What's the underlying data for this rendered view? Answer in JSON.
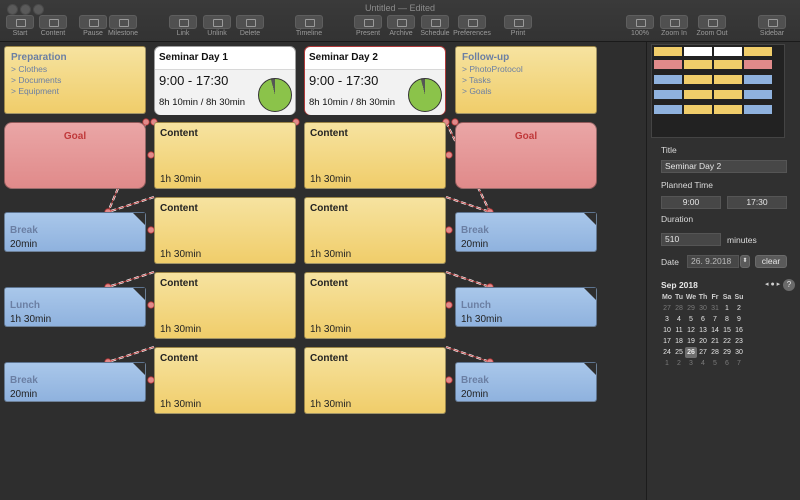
{
  "window": {
    "title": "Untitled — Edited"
  },
  "toolbar": [
    {
      "id": "start",
      "label": "Start",
      "icon": "start-icon"
    },
    {
      "id": "content",
      "label": "Content",
      "icon": "content-icon"
    },
    {
      "id": "pause",
      "label": "Pause",
      "icon": "pause-icon"
    },
    {
      "id": "milestone",
      "label": "Milestone",
      "icon": "milestone-icon"
    },
    {
      "id": "link",
      "label": "Link",
      "icon": "link-icon"
    },
    {
      "id": "unlink",
      "label": "Unlink",
      "icon": "unlink-icon"
    },
    {
      "id": "delete",
      "label": "Delete",
      "icon": "delete-icon"
    },
    {
      "id": "timeline",
      "label": "Timeline",
      "icon": "timeline-icon"
    },
    {
      "id": "present",
      "label": "Present",
      "icon": "present-icon"
    },
    {
      "id": "archive",
      "label": "Archive",
      "icon": "archive-icon"
    },
    {
      "id": "schedule",
      "label": "Schedule",
      "icon": "schedule-icon"
    },
    {
      "id": "preferences",
      "label": "Preferences",
      "icon": "gear-icon"
    },
    {
      "id": "print",
      "label": "Print",
      "icon": "print-icon"
    },
    {
      "id": "zoom100",
      "label": "100%",
      "icon": "zoom-actual-icon"
    },
    {
      "id": "zoomin",
      "label": "Zoom In",
      "icon": "zoom-in-icon"
    },
    {
      "id": "zoomout",
      "label": "Zoom Out",
      "icon": "zoom-out-icon"
    },
    {
      "id": "sidebar",
      "label": "Sidebar",
      "icon": "sidebar-icon"
    }
  ],
  "canvas": {
    "preparation": {
      "title": "Preparation",
      "items": [
        "> Clothes",
        "> Documents",
        "> Equipment"
      ]
    },
    "followup": {
      "title": "Follow-up",
      "items": [
        "> PhotoProtocol",
        "> Tasks",
        "> Goals"
      ]
    },
    "days": [
      {
        "title": "Seminar Day 1",
        "time": "9:00 - 17:30",
        "duration": "8h 10min / 8h 30min",
        "fraction": 0.96
      },
      {
        "title": "Seminar Day 2",
        "time": "9:00 - 17:30",
        "duration": "8h 10min / 8h 30min",
        "fraction": 0.96
      }
    ],
    "goal_label": "Goal",
    "content_label": "Content",
    "content_duration": "1h 30min",
    "breaks_left": [
      {
        "title": "Break",
        "duration": "20min"
      },
      {
        "title": "Lunch",
        "duration": "1h 30min"
      },
      {
        "title": "Break",
        "duration": "20min"
      }
    ],
    "breaks_right": [
      {
        "title": "Break",
        "duration": "20min"
      },
      {
        "title": "Lunch",
        "duration": "1h 30min"
      },
      {
        "title": "Break",
        "duration": "20min"
      }
    ],
    "colors": {
      "content": "#f0cd6a",
      "goal": "#e08a8a",
      "break": "#8fb2de",
      "link": "#c0393a",
      "pie": "#8bc34a"
    }
  },
  "inspector": {
    "title_label": "Title",
    "title_value": "Seminar Day 2",
    "planned_label": "Planned Time",
    "planned_start": "9:00",
    "planned_end": "17:30",
    "duration_label": "Duration",
    "duration_value": "510",
    "duration_unit": "minutes",
    "date_label": "Date",
    "date_value": "26.  9.2018",
    "clear_label": "clear",
    "help_label": "?",
    "calendar": {
      "month": "Sep 2018",
      "weekdays": [
        "Mo",
        "Tu",
        "We",
        "Th",
        "Fr",
        "Sa",
        "Su"
      ],
      "weeks": [
        [
          "27",
          "28",
          "29",
          "30",
          "31",
          "1",
          "2"
        ],
        [
          "3",
          "4",
          "5",
          "6",
          "7",
          "8",
          "9"
        ],
        [
          "10",
          "11",
          "12",
          "13",
          "14",
          "15",
          "16"
        ],
        [
          "17",
          "18",
          "19",
          "20",
          "21",
          "22",
          "23"
        ],
        [
          "24",
          "25",
          "26",
          "27",
          "28",
          "29",
          "30"
        ],
        [
          "1",
          "2",
          "3",
          "4",
          "5",
          "6",
          "7"
        ]
      ],
      "selected": "26"
    }
  }
}
